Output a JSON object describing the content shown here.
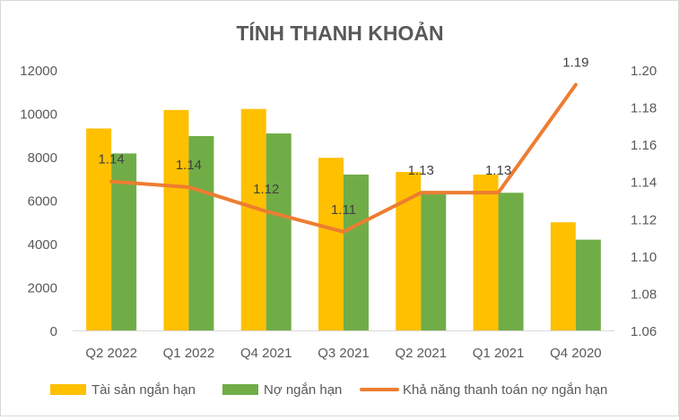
{
  "chart_data": {
    "type": "bar",
    "title": "TÍNH THANH KHOẢN",
    "categories": [
      "Q2 2022",
      "Q1 2022",
      "Q4 2021",
      "Q3 2021",
      "Q2 2021",
      "Q1 2021",
      "Q4 2020"
    ],
    "series": [
      {
        "name": "Tài sản ngắn hạn",
        "type": "bar",
        "axis": "left",
        "color": "#FFC000",
        "values": [
          9300,
          10150,
          10200,
          7950,
          7300,
          7180,
          4980
        ]
      },
      {
        "name": "Nợ ngắn hạn",
        "type": "bar",
        "axis": "left",
        "color": "#70AD47",
        "values": [
          8150,
          8950,
          9070,
          7180,
          6350,
          6340,
          4180
        ]
      },
      {
        "name": "Khả năng thanh toán nợ ngắn hạn",
        "type": "line",
        "axis": "right",
        "color": "#ED7D31",
        "values": [
          1.14,
          1.137,
          1.124,
          1.113,
          1.134,
          1.134,
          1.192
        ],
        "labels": [
          "1.14",
          "1.14",
          "1.12",
          "1.11",
          "1.13",
          "1.13",
          "1.19"
        ]
      }
    ],
    "y_left": {
      "min": 0,
      "max": 12000,
      "ticks": [
        "0",
        "2000",
        "4000",
        "6000",
        "8000",
        "10000",
        "12000"
      ]
    },
    "y_right": {
      "min": 1.06,
      "max": 1.2,
      "ticks": [
        "1.06",
        "1.08",
        "1.10",
        "1.12",
        "1.14",
        "1.16",
        "1.18",
        "1.20"
      ]
    },
    "grid": false,
    "legend_position": "bottom"
  }
}
